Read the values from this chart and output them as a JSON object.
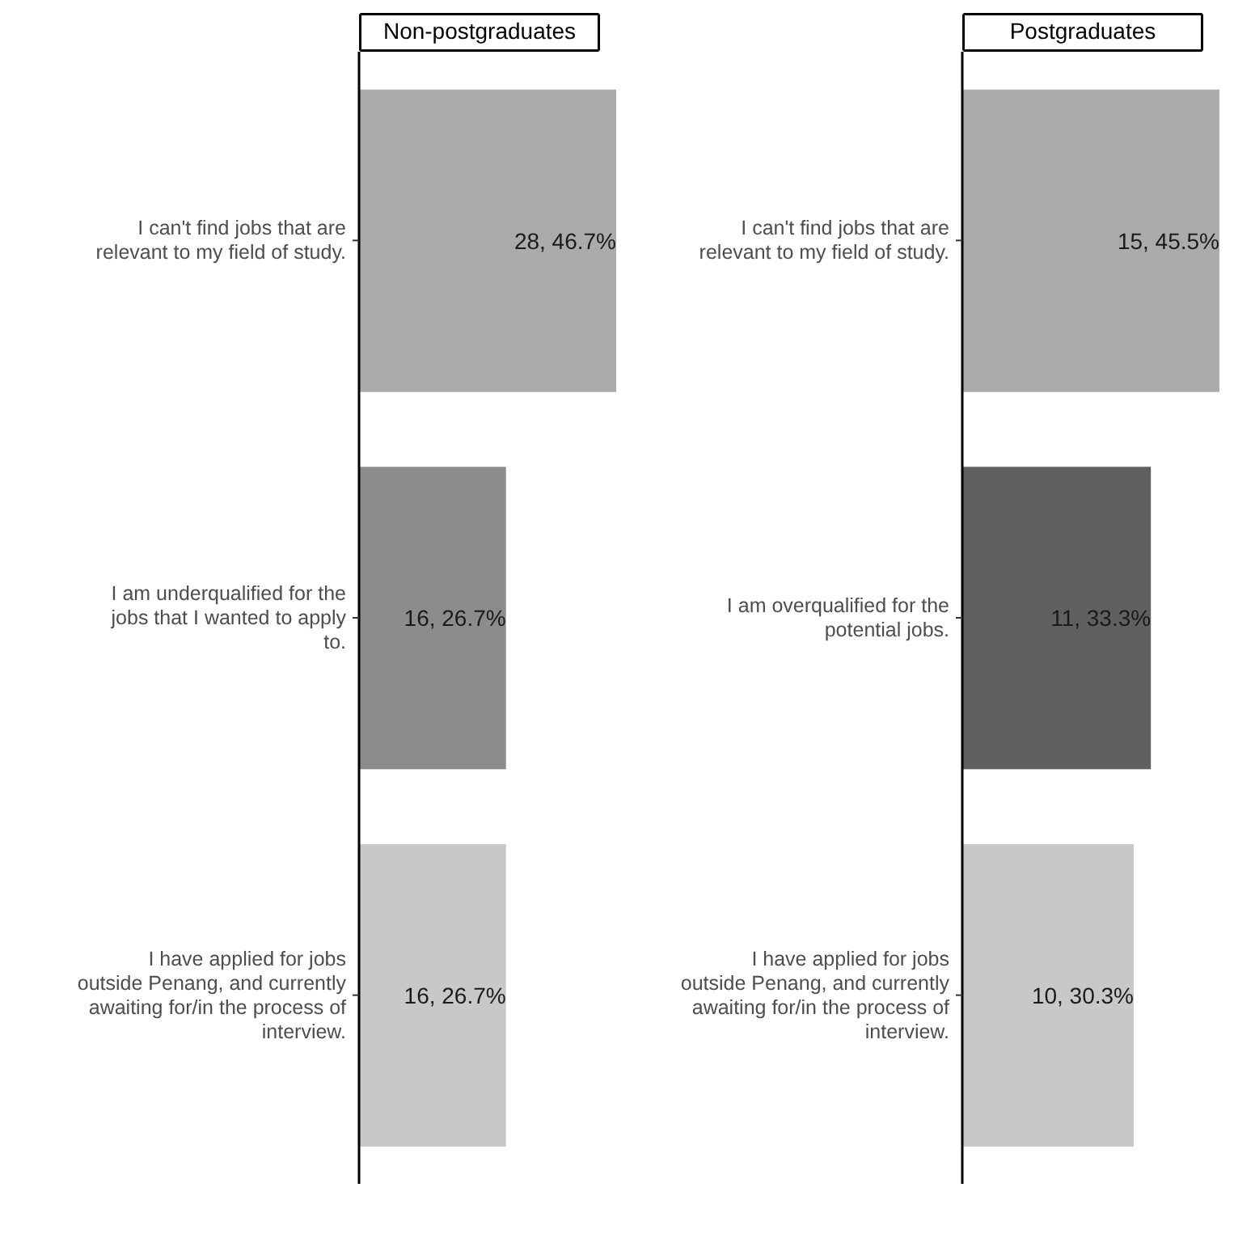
{
  "chart_data": [
    {
      "type": "bar",
      "orientation": "horizontal",
      "title": "Non-postgraduates",
      "categories": [
        "I can't find jobs that are relevant to my field of study.",
        "I am underqualified for the jobs that I wanted to apply to.",
        "I have applied for jobs outside Penang, and currently awaiting for/in the process of interview."
      ],
      "values": [
        28,
        16,
        16
      ],
      "colors": [
        "#ababab",
        "#8c8c8c",
        "#c8c8c8"
      ],
      "value_labels": [
        "28, 46.7%",
        "16, 26.7%",
        "16, 26.7%"
      ]
    },
    {
      "type": "bar",
      "orientation": "horizontal",
      "title": "Postgraduates",
      "categories": [
        "I can't find jobs that are relevant to my field of study.",
        "I am overqualified for the potential jobs.",
        "I have applied for jobs outside Penang, and currently awaiting for/in the process of interview."
      ],
      "values": [
        15,
        11,
        10
      ],
      "colors": [
        "#ababab",
        "#606060",
        "#c8c8c8"
      ],
      "value_labels": [
        "15, 45.5%",
        "11, 33.3%",
        "10, 30.3%"
      ]
    }
  ]
}
